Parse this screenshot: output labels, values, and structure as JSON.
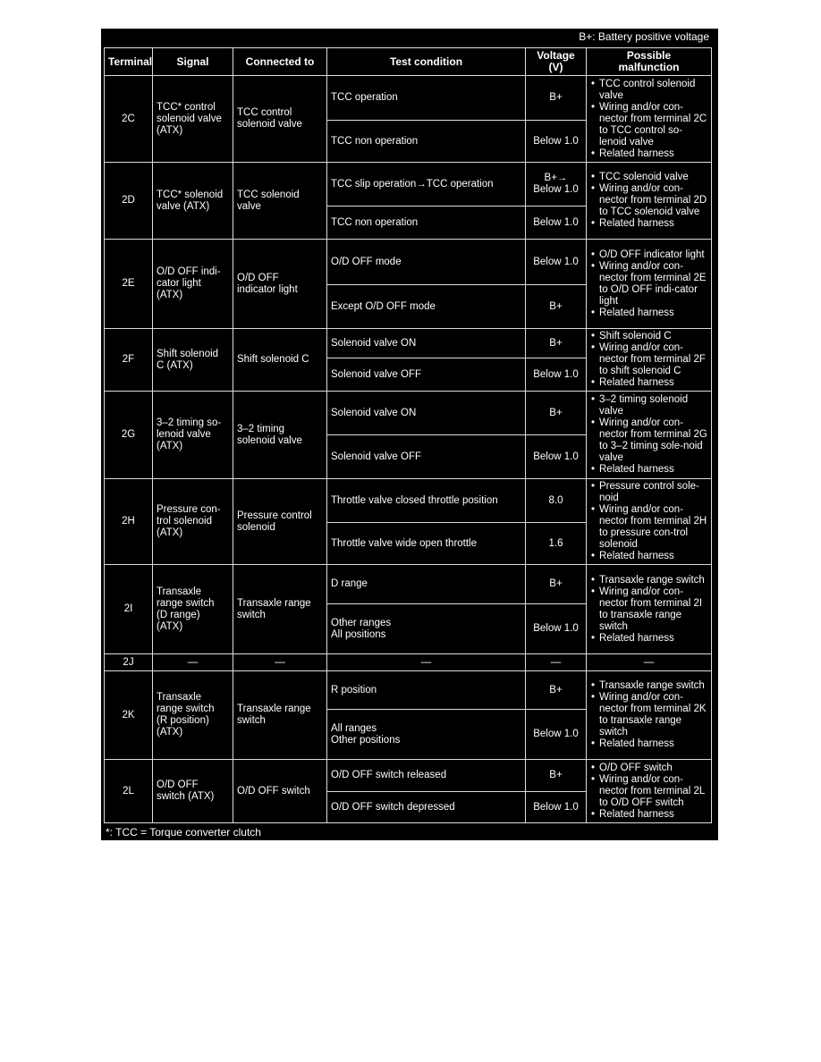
{
  "notes": {
    "top": "B+: Battery positive voltage",
    "bottom": "*: TCC = Torque converter clutch"
  },
  "headers": [
    "Terminal",
    "Signal",
    "Connected to",
    "Test condition",
    "Voltage (V)",
    "Possible\nmalfunction"
  ],
  "rows": [
    {
      "terminal": "2C",
      "signal": "TCC* control\nsolenoid valve\n(ATX)",
      "connected": "TCC control\nsolenoid valve",
      "tests": [
        {
          "condition": "TCC operation",
          "voltage": "B+"
        },
        {
          "condition": "TCC non operation",
          "voltage": "Below 1.0"
        }
      ],
      "malfunction": [
        "TCC control solenoid valve",
        "Wiring and/or con-nector from terminal 2C to TCC control so-lenoid valve",
        "Related harness"
      ]
    },
    {
      "terminal": "2D",
      "signal": "TCC* solenoid\nvalve (ATX)",
      "connected": "TCC solenoid\nvalve",
      "tests": [
        {
          "condition": "TCC slip operation→TCC operation",
          "voltage": "B+→\nBelow 1.0"
        },
        {
          "condition": "TCC non operation",
          "voltage": "Below 1.0"
        }
      ],
      "malfunction": [
        "TCC solenoid valve",
        "Wiring and/or con-nector from terminal 2D to TCC solenoid valve",
        "Related harness"
      ]
    },
    {
      "terminal": "2E",
      "signal": "O/D OFF indi-\ncator light\n(ATX)",
      "connected": "O/D OFF\nindicator light",
      "tests": [
        {
          "condition": "O/D OFF mode",
          "voltage": "Below 1.0"
        },
        {
          "condition": "Except O/D OFF mode",
          "voltage": "B+"
        }
      ],
      "malfunction": [
        "O/D OFF indicator light",
        "Wiring and/or con-nector from terminal 2E to O/D OFF indi-cator light",
        "Related harness"
      ]
    },
    {
      "terminal": "2F",
      "signal": "Shift solenoid\nC (ATX)",
      "connected": "Shift solenoid C",
      "tests": [
        {
          "condition": "Solenoid valve ON",
          "voltage": "B+"
        },
        {
          "condition": "Solenoid valve OFF",
          "voltage": "Below 1.0"
        }
      ],
      "malfunction": [
        "Shift solenoid C",
        "Wiring and/or con-nector from terminal 2F to shift solenoid C",
        "Related harness"
      ]
    },
    {
      "terminal": "2G",
      "signal": "3–2 timing so-\nlenoid valve\n(ATX)",
      "connected": "3–2 timing\nsolenoid valve",
      "tests": [
        {
          "condition": "Solenoid valve ON",
          "voltage": "B+"
        },
        {
          "condition": "Solenoid valve OFF",
          "voltage": "Below 1.0"
        }
      ],
      "malfunction": [
        "3–2 timing solenoid valve",
        "Wiring and/or con-nector from terminal 2G to 3–2 timing sole-noid valve",
        "Related harness"
      ]
    },
    {
      "terminal": "2H",
      "signal": "Pressure con-\ntrol solenoid\n(ATX)",
      "connected": "Pressure control\nsolenoid",
      "tests": [
        {
          "condition": "Throttle valve closed throttle position",
          "voltage": "8.0"
        },
        {
          "condition": "Throttle valve wide open throttle",
          "voltage": "1.6"
        }
      ],
      "malfunction": [
        "Pressure control sole-noid",
        "Wiring and/or con-nector from terminal 2H to pressure con-trol solenoid",
        "Related harness"
      ]
    },
    {
      "terminal": "2I",
      "signal": "Transaxle\nrange switch\n(D range)\n(ATX)",
      "connected": "Transaxle range\nswitch",
      "tests": [
        {
          "condition": "D range",
          "voltage": "B+"
        },
        {
          "condition": "Other ranges\nAll positions",
          "voltage": "Below 1.0"
        }
      ],
      "malfunction": [
        "Transaxle range switch",
        "Wiring and/or con-nector from terminal 2I to transaxle range switch",
        "Related harness"
      ]
    },
    {
      "terminal": "2J",
      "signal": "—",
      "connected": "—",
      "tests": [
        {
          "condition": "—",
          "voltage": "—"
        }
      ],
      "malfunction_text": "—"
    },
    {
      "terminal": "2K",
      "signal": "Transaxle\nrange switch\n(R position)\n(ATX)",
      "connected": "Transaxle range\nswitch",
      "tests": [
        {
          "condition": "R position",
          "voltage": "B+"
        },
        {
          "condition": "All ranges\nOther positions",
          "voltage": "Below 1.0"
        }
      ],
      "malfunction": [
        "Transaxle range switch",
        "Wiring and/or con-nector from terminal 2K to transaxle range switch",
        "Related harness"
      ]
    },
    {
      "terminal": "2L",
      "signal": "O/D OFF\nswitch (ATX)",
      "connected": "O/D OFF switch",
      "tests": [
        {
          "condition": "O/D OFF switch released",
          "voltage": "B+"
        },
        {
          "condition": "O/D OFF switch depressed",
          "voltage": "Below 1.0"
        }
      ],
      "malfunction": [
        "O/D OFF switch",
        "Wiring and/or con-nector from terminal 2L to O/D OFF switch",
        "Related harness"
      ]
    }
  ]
}
